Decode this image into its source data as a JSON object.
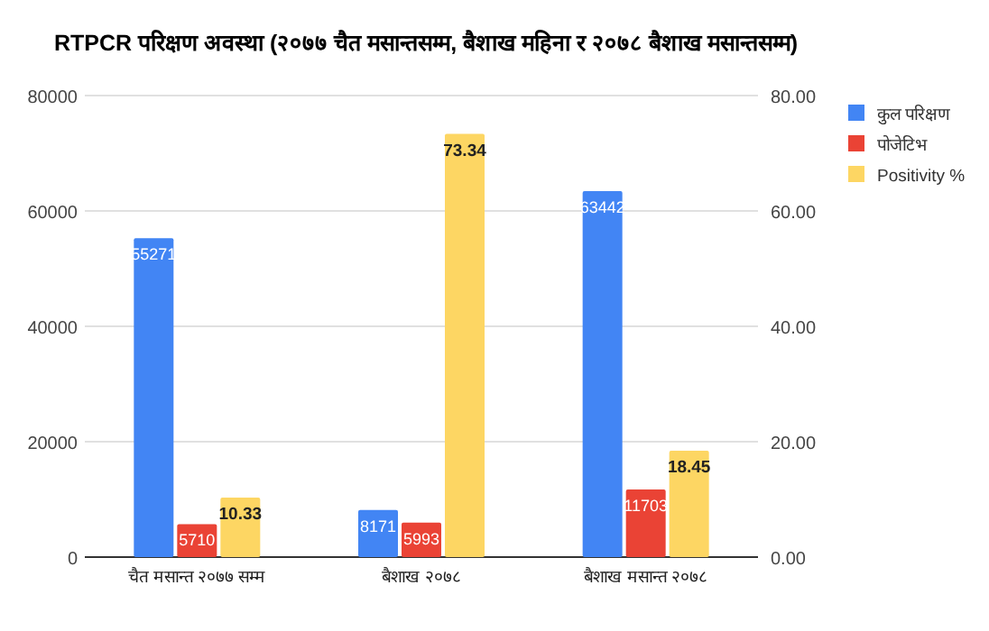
{
  "chart_data": {
    "type": "bar",
    "title": "RTPCR परिक्षण अवस्था (२०७७ चैत मसान्तसम्म, बैशाख महिना र २०७८ बैशाख मसान्तसम्म)",
    "categories": [
      "चैत मसान्त २०७७ सम्म",
      "बैशाख २०७८",
      "बैशाख मसान्त २०७८"
    ],
    "series": [
      {
        "name": "कुल परिक्षण",
        "color": "#4285f4",
        "values": [
          55271,
          8171,
          63442
        ]
      },
      {
        "name": "पोजेटिभ",
        "color": "#ea4335",
        "values": [
          5710,
          5993,
          11703
        ]
      },
      {
        "name": "Positivity %",
        "color": "#fdd663",
        "axis": "y2",
        "values": [
          10.33,
          73.34,
          18.45
        ]
      }
    ],
    "ylim": [
      0,
      80000
    ],
    "yticks": [
      0,
      20000,
      40000,
      60000,
      80000
    ],
    "y2lim": [
      0,
      80
    ],
    "y2ticks": [
      {
        "value": 0,
        "label": "0.00"
      },
      {
        "value": 20,
        "label": "20.00"
      },
      {
        "value": 40,
        "label": "40.00"
      },
      {
        "value": 60,
        "label": "60.00"
      },
      {
        "value": 80,
        "label": "80.00"
      }
    ],
    "grid": "y",
    "legend": "top right",
    "data_labels": true
  }
}
